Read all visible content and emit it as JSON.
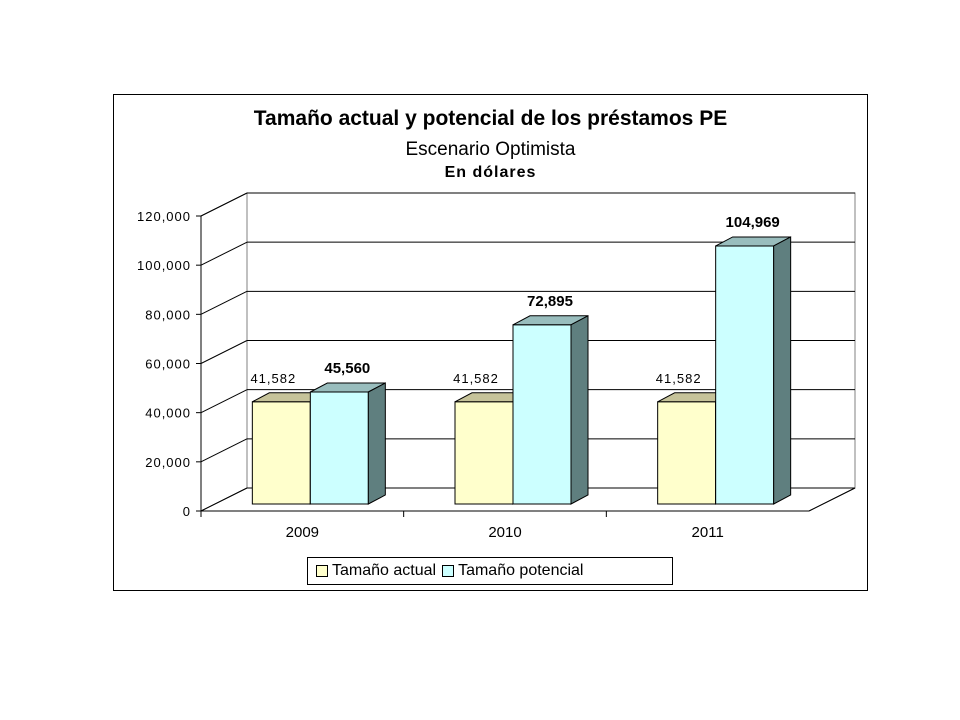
{
  "chart_data": {
    "type": "bar",
    "title": "Tamaño actual y potencial de los préstamos PE",
    "subtitle": "Escenario Optimista",
    "subtitle2": "En dólares",
    "categories": [
      "2009",
      "2010",
      "2011"
    ],
    "ylim": [
      0,
      120000
    ],
    "yticks": [
      0,
      20000,
      40000,
      60000,
      80000,
      100000,
      120000
    ],
    "ytick_labels": [
      "0",
      "20,000",
      "40,000",
      "60,000",
      "80,000",
      "100,000",
      "120,000"
    ],
    "grid": true,
    "legend_position": "bottom",
    "series": [
      {
        "name": "Tamaño actual",
        "values": [
          41582,
          41582,
          41582
        ],
        "labels": [
          "41,582",
          "41,582",
          "41,582"
        ],
        "color_front": "#ffffcc",
        "color_top": "#c6c39a",
        "color_side": "#9c9a7a"
      },
      {
        "name": "Tamaño potencial",
        "values": [
          45560,
          72895,
          104969
        ],
        "labels": [
          "45,560",
          "72,895",
          "104,969"
        ],
        "color_front": "#ccffff",
        "color_top": "#99bdbd",
        "color_side": "#5f7f7f"
      }
    ]
  }
}
